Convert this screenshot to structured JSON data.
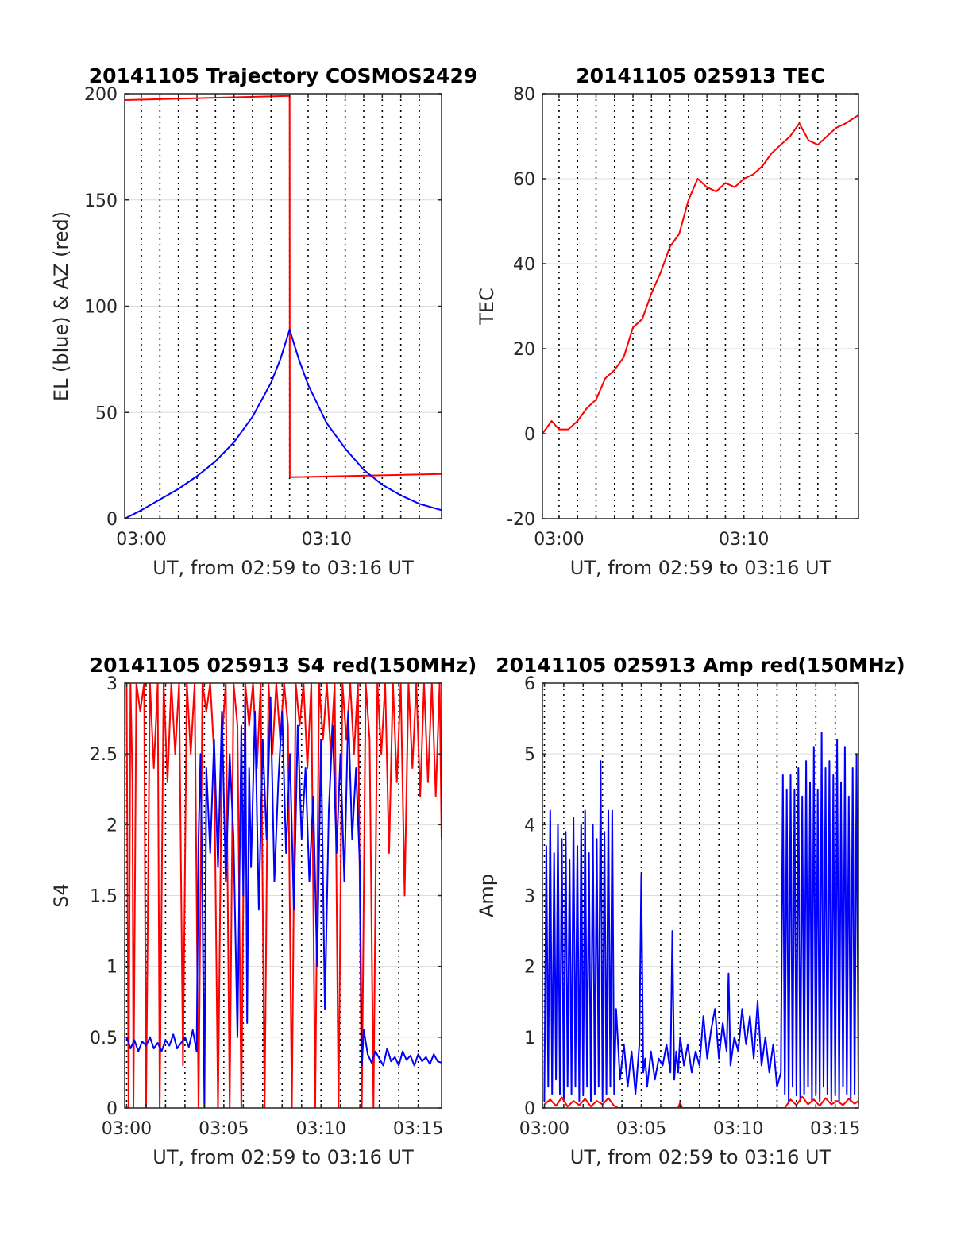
{
  "chart_data": [
    {
      "type": "line",
      "title": "20141105 Trajectory COSMOS2429",
      "xlabel": "UT, from 02:59 to 03:16 UT",
      "ylabel": "EL (blue) & AZ (red)",
      "xlim": [
        -0.9,
        16.2
      ],
      "ylim": [
        0,
        200
      ],
      "xticks": [
        0,
        10
      ],
      "xticklabels": [
        "03:00",
        "03:10"
      ],
      "yticks": [
        0,
        50,
        100,
        150,
        200
      ],
      "yticklabels": [
        "0",
        "50",
        "100",
        "150",
        "200"
      ],
      "vgrid": [
        0,
        1,
        2,
        3,
        4,
        5,
        6,
        7,
        8,
        9,
        10,
        11,
        12,
        13,
        14,
        15
      ],
      "grid": true,
      "series": [
        {
          "color": "#ff0000",
          "x": [
            -0.9,
            8.0,
            8.0,
            8.01,
            16.2
          ],
          "y": [
            197,
            199,
            199,
            19.5,
            21
          ]
        },
        {
          "color": "#0000ff",
          "x": [
            -0.9,
            0,
            1,
            2,
            3,
            4,
            5,
            6,
            7,
            7.5,
            8.0,
            8.5,
            9,
            10,
            11,
            12,
            13,
            14,
            15,
            16.2
          ],
          "y": [
            0,
            4,
            9,
            14,
            20,
            27,
            36,
            48,
            64,
            75,
            89,
            75,
            63,
            45,
            33,
            23,
            16,
            11,
            7,
            4
          ]
        }
      ]
    },
    {
      "type": "line",
      "title": "20141105 025913 TEC",
      "xlabel": "UT, from 02:59 to 03:16 UT",
      "ylabel": "TEC",
      "xlim": [
        -0.9,
        16.2
      ],
      "ylim": [
        -20,
        80
      ],
      "xticks": [
        0,
        10
      ],
      "xticklabels": [
        "03:00",
        "03:10"
      ],
      "yticks": [
        -20,
        0,
        20,
        40,
        60,
        80
      ],
      "yticklabels": [
        "-20",
        "0",
        "20",
        "40",
        "60",
        "80"
      ],
      "vgrid": [
        0,
        1,
        2,
        3,
        4,
        5,
        6,
        7,
        8,
        9,
        10,
        11,
        12,
        13,
        14,
        15
      ],
      "grid": true,
      "series": [
        {
          "color": "#ff0000",
          "x": [
            -0.9,
            -0.4,
            0,
            0.5,
            1,
            1.5,
            2,
            2.5,
            3,
            3.5,
            4,
            4.5,
            5,
            5.5,
            6,
            6.5,
            7,
            7.5,
            8,
            8.5,
            9,
            9.5,
            10,
            10.5,
            11,
            11.5,
            12,
            12.5,
            13,
            13.5,
            14,
            14.5,
            15,
            15.5,
            16.2
          ],
          "y": [
            0,
            3,
            1,
            1,
            3,
            6,
            8,
            13,
            15,
            18,
            25,
            27,
            33,
            38,
            44,
            47,
            55,
            60,
            58,
            57,
            59,
            58,
            60,
            61,
            63,
            66,
            68,
            70,
            73,
            69,
            68,
            70,
            72,
            73,
            75
          ]
        }
      ]
    },
    {
      "type": "line",
      "title": "20141105 025913 S4 red(150MHz)",
      "xlabel": "UT, from 02:59 to 03:16 UT",
      "ylabel": "S4",
      "xlim": [
        -0.1,
        16.2
      ],
      "ylim": [
        0,
        3
      ],
      "xticks": [
        0,
        5,
        10,
        15
      ],
      "xticklabels": [
        "03:00",
        "03:05",
        "03:10",
        "03:15"
      ],
      "yticks": [
        0,
        0.5,
        1,
        1.5,
        2,
        2.5,
        3
      ],
      "yticklabels": [
        "0",
        "0.5",
        "1",
        "1.5",
        "2",
        "2.5",
        "3"
      ],
      "vgrid": [
        0,
        1,
        2,
        3,
        4,
        5,
        6,
        7,
        8,
        9,
        10,
        11,
        12,
        13,
        14,
        15
      ],
      "grid": true,
      "series": [
        {
          "color": "#ff0000",
          "x": [
            0,
            0.1,
            0.2,
            0.3,
            0.35,
            0.5,
            0.7,
            0.9,
            1.0,
            1.2,
            1.4,
            1.6,
            1.7,
            1.9,
            2.1,
            2.3,
            2.5,
            2.7,
            2.9,
            3.1,
            3.3,
            3.5,
            3.7,
            3.9,
            4.1,
            4.3,
            4.5,
            4.7,
            4.9,
            5.1,
            5.3,
            5.5,
            5.7,
            5.9,
            6.1,
            6.3,
            6.5,
            6.7,
            6.9,
            7.1,
            7.3,
            7.5,
            7.7,
            7.9,
            8.1,
            8.3,
            8.5,
            8.7,
            8.9,
            9.1,
            9.3,
            9.5,
            9.7,
            9.9,
            10.1,
            10.3,
            10.5,
            10.7,
            10.9,
            11.1,
            11.3,
            11.5,
            11.7,
            11.9,
            12.1,
            12.3,
            12.5,
            12.7,
            12.9,
            13.1,
            13.3,
            13.5,
            13.7,
            13.9,
            14.1,
            14.3,
            14.5,
            14.7,
            14.9,
            15.1,
            15.3,
            15.5,
            15.7,
            15.9,
            16.1,
            16.2
          ],
          "y": [
            3,
            0,
            3,
            2.3,
            0,
            3,
            2.8,
            3,
            0,
            3,
            2.4,
            3,
            0,
            3,
            2.3,
            3,
            2.5,
            3,
            0.3,
            3,
            2.5,
            3,
            0,
            3,
            2.8,
            3,
            2.5,
            0,
            2.6,
            3,
            0,
            3,
            2.7,
            0,
            3,
            2.7,
            3,
            2.4,
            3,
            0,
            3,
            2.5,
            3,
            2.6,
            3,
            2.7,
            0,
            3,
            2.7,
            3,
            2.4,
            3,
            0,
            3,
            2.6,
            3,
            2.5,
            3,
            0,
            3,
            2.6,
            3,
            2.5,
            3,
            0,
            3,
            2.6,
            0,
            3,
            2.5,
            3,
            1.8,
            3,
            2.3,
            3,
            1.5,
            3,
            2.4,
            3,
            2.2,
            3,
            2.3,
            3,
            2.2,
            3,
            1.9
          ]
        },
        {
          "color": "#0000ff",
          "x": [
            0,
            0.2,
            0.4,
            0.6,
            0.8,
            1.0,
            1.2,
            1.4,
            1.6,
            1.8,
            2.0,
            2.2,
            2.4,
            2.6,
            2.8,
            3.0,
            3.2,
            3.4,
            3.6,
            3.7,
            3.8,
            3.9,
            4.0,
            4.1,
            4.3,
            4.5,
            4.7,
            4.9,
            5.1,
            5.3,
            5.5,
            5.7,
            5.9,
            6.0,
            6.1,
            6.2,
            6.3,
            6.4,
            6.6,
            6.8,
            7.0,
            7.2,
            7.4,
            7.6,
            7.8,
            8.0,
            8.2,
            8.4,
            8.6,
            8.8,
            9.0,
            9.2,
            9.4,
            9.6,
            9.8,
            10.0,
            10.2,
            10.4,
            10.6,
            10.8,
            11.0,
            11.2,
            11.4,
            11.6,
            11.8,
            12.0,
            12.1,
            12.2,
            12.4,
            12.6,
            12.8,
            13.0,
            13.2,
            13.4,
            13.6,
            13.8,
            14.0,
            14.2,
            14.4,
            14.6,
            14.8,
            15.0,
            15.2,
            15.4,
            15.6,
            15.8,
            16.0,
            16.2
          ],
          "y": [
            0.5,
            0.42,
            0.48,
            0.4,
            0.47,
            0.44,
            0.5,
            0.42,
            0.46,
            0.4,
            0.48,
            0.44,
            0.52,
            0.42,
            0.46,
            0.5,
            0.43,
            0.55,
            0.4,
            1.9,
            2.5,
            1.5,
            0,
            2.4,
            1.8,
            2.6,
            1.7,
            2.8,
            1.6,
            2.5,
            1.9,
            0.5,
            2.7,
            1.5,
            2.9,
            0.6,
            2.4,
            1.7,
            2.8,
            1.4,
            2.6,
            1.9,
            2.9,
            1.6,
            2.3,
            2.8,
            1.8,
            2.5,
            1.4,
            2.7,
            1.9,
            2.4,
            1.6,
            2.2,
            1.0,
            2.6,
            0.7,
            2.1,
            2.7,
            1.8,
            2.5,
            1.6,
            2.8,
            1.9,
            2.4,
            1.7,
            0.3,
            0.55,
            0.38,
            0.32,
            0.4,
            0.35,
            0.3,
            0.42,
            0.33,
            0.36,
            0.3,
            0.4,
            0.34,
            0.37,
            0.3,
            0.38,
            0.33,
            0.36,
            0.31,
            0.38,
            0.33,
            0.32
          ]
        }
      ]
    },
    {
      "type": "line",
      "title": "20141105 025913 Amp red(150MHz)",
      "xlabel": "UT, from 02:59 to 03:16 UT",
      "ylabel": "Amp",
      "xlim": [
        -0.1,
        16.2
      ],
      "ylim": [
        0,
        6
      ],
      "xticks": [
        0,
        5,
        10,
        15
      ],
      "xticklabels": [
        "03:00",
        "03:05",
        "03:10",
        "03:15"
      ],
      "yticks": [
        0,
        1,
        2,
        3,
        4,
        5,
        6
      ],
      "yticklabels": [
        "0",
        "1",
        "2",
        "3",
        "4",
        "5",
        "6"
      ],
      "vgrid": [
        0,
        1,
        2,
        3,
        4,
        5,
        6,
        7,
        8,
        9,
        10,
        11,
        12,
        13,
        14,
        15
      ],
      "grid": true,
      "series": [
        {
          "color": "#0000ff",
          "x": [
            0,
            0.1,
            0.2,
            0.3,
            0.4,
            0.5,
            0.6,
            0.7,
            0.8,
            0.9,
            1.0,
            1.1,
            1.2,
            1.3,
            1.4,
            1.5,
            1.6,
            1.7,
            1.8,
            1.9,
            2.0,
            2.1,
            2.2,
            2.3,
            2.4,
            2.5,
            2.6,
            2.7,
            2.8,
            2.9,
            3.0,
            3.1,
            3.2,
            3.3,
            3.4,
            3.5,
            3.6,
            3.7,
            3.9,
            4.1,
            4.3,
            4.5,
            4.7,
            4.9,
            5.0,
            5.1,
            5.2,
            5.3,
            5.5,
            5.7,
            5.9,
            6.1,
            6.3,
            6.5,
            6.6,
            6.7,
            6.8,
            6.9,
            7.0,
            7.2,
            7.4,
            7.6,
            7.8,
            8.0,
            8.2,
            8.4,
            8.6,
            8.8,
            9.0,
            9.2,
            9.4,
            9.5,
            9.6,
            9.8,
            10.0,
            10.2,
            10.4,
            10.6,
            10.8,
            11.0,
            11.2,
            11.4,
            11.6,
            11.8,
            12.0,
            12.2,
            12.3,
            12.4,
            12.5,
            12.6,
            12.7,
            12.8,
            12.9,
            13.0,
            13.1,
            13.2,
            13.3,
            13.4,
            13.5,
            13.6,
            13.7,
            13.8,
            13.9,
            14.0,
            14.1,
            14.2,
            14.3,
            14.4,
            14.5,
            14.6,
            14.7,
            14.8,
            14.9,
            15.0,
            15.1,
            15.2,
            15.3,
            15.4,
            15.5,
            15.6,
            15.7,
            15.8,
            15.9,
            16.0,
            16.1,
            16.2
          ],
          "y": [
            0.1,
            3.7,
            0.3,
            4.2,
            0.2,
            3.6,
            0.4,
            4.0,
            0.2,
            3.8,
            0.1,
            3.9,
            0.3,
            3.5,
            0.2,
            4.1,
            0.3,
            3.7,
            0.1,
            4.0,
            0.2,
            4.2,
            0.3,
            3.6,
            0.1,
            4.0,
            0.2,
            3.8,
            0.3,
            4.9,
            0.1,
            3.9,
            0.2,
            4.2,
            0.3,
            4.2,
            0.2,
            1.4,
            0.4,
            0.9,
            0.3,
            0.8,
            0.2,
            0.9,
            3.3,
            0.5,
            0.7,
            0.3,
            0.8,
            0.4,
            0.7,
            0.6,
            0.9,
            0.5,
            2.5,
            0.4,
            0.8,
            0.5,
            1.0,
            0.6,
            0.9,
            0.5,
            0.8,
            0.6,
            1.3,
            0.7,
            1.1,
            1.4,
            0.7,
            1.2,
            0.8,
            1.9,
            0.6,
            1.0,
            0.8,
            1.4,
            0.9,
            1.3,
            0.7,
            1.5,
            0.6,
            1.0,
            0.5,
            0.9,
            0.3,
            0.5,
            4.7,
            0.2,
            4.5,
            0.1,
            4.7,
            0.3,
            4.5,
            0.2,
            4.8,
            0.1,
            4.4,
            0.2,
            4.9,
            0.3,
            4.6,
            0.1,
            5.1,
            0.2,
            4.5,
            0.1,
            5.3,
            0.3,
            4.8,
            0.2,
            4.9,
            0.1,
            4.7,
            0.2,
            5.2,
            0.1,
            4.6,
            0.3,
            5.1,
            0.2,
            4.4,
            0.1,
            4.8,
            0.2,
            5.0,
            0.3
          ]
        },
        {
          "color": "#ff0000",
          "x": [
            0,
            0.3,
            0.6,
            0.9,
            1.2,
            1.5,
            1.8,
            2.1,
            2.4,
            2.7,
            3.0,
            3.3,
            3.6,
            3.8,
            6.9,
            7.0,
            7.1,
            12.4,
            12.7,
            13.0,
            13.3,
            13.6,
            13.9,
            14.2,
            14.5,
            14.8,
            15.1,
            15.4,
            15.7,
            16.0,
            16.2
          ],
          "y": [
            0.05,
            0.12,
            0.03,
            0.15,
            0.02,
            0.1,
            0.04,
            0.13,
            0.02,
            0.1,
            0.05,
            0.14,
            0.03,
            0.0,
            0.0,
            0.08,
            0.0,
            0.0,
            0.12,
            0.04,
            0.16,
            0.05,
            0.12,
            0.03,
            0.14,
            0.05,
            0.1,
            0.04,
            0.13,
            0.06,
            0.1
          ]
        }
      ]
    }
  ]
}
